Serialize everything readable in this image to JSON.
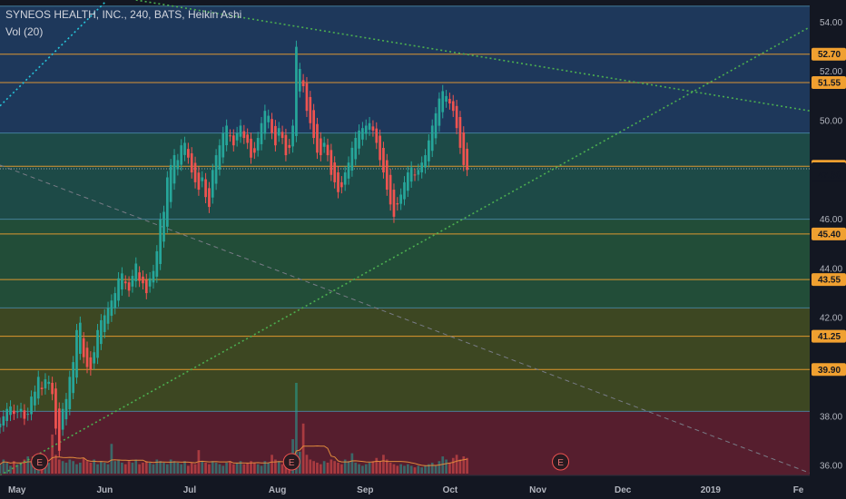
{
  "header": {
    "title": "SYNEOS HEALTH, INC., 240, BATS, Heikin Ashi",
    "indicator": "Vol (20)"
  },
  "chart_data": {
    "type": "candlestick",
    "title": "SYNEOS HEALTH, INC., 240, BATS, Heikin Ashi",
    "ylim": [
      35.6,
      54.9
    ],
    "y_ticks": [
      "36.00",
      "38.00",
      "42.00",
      "44.00",
      "46.00",
      "50.00",
      "52.00",
      "54.00"
    ],
    "x_ticks": [
      "May",
      "Jun",
      "Jul",
      "Aug",
      "Sep",
      "Oct",
      "Nov",
      "Dec",
      "2019",
      "Fe"
    ],
    "levels": [
      {
        "label": "52.70",
        "value": 52.7,
        "color": "#f0a030"
      },
      {
        "label": "51.55",
        "value": 51.55,
        "color": "#f0a030"
      },
      {
        "label": "48.15",
        "value": 48.15,
        "color": "#f0a030"
      },
      {
        "label": "45.40",
        "value": 45.4,
        "color": "#f0a030"
      },
      {
        "label": "43.55",
        "value": 43.55,
        "color": "#f0a030"
      },
      {
        "label": "41.25",
        "value": 41.25,
        "color": "#f0a030"
      },
      {
        "label": "39.90",
        "value": 39.9,
        "color": "#f0a030"
      }
    ],
    "current_price": {
      "label": "48.05",
      "value": 48.05,
      "color": "#ef5350"
    },
    "price_tag_2": {
      "label": "47.80",
      "value": 47.8,
      "color": "#ef5350"
    },
    "gridlines": [
      54.65,
      49.5,
      46.0,
      42.4,
      38.2
    ],
    "zones": [
      {
        "from": 49.5,
        "to": 54.65,
        "color": "#1f3a5f"
      },
      {
        "from": 46.0,
        "to": 49.5,
        "color": "#1e4d4a"
      },
      {
        "from": 42.4,
        "to": 46.0,
        "color": "#23503a"
      },
      {
        "from": 38.2,
        "to": 42.4,
        "color": "#3f4a23"
      },
      {
        "from": 35.6,
        "to": 38.2,
        "color": "#5a1f2f"
      }
    ],
    "trendlines": [
      {
        "points": [
          [
            "2018-04-25",
            35.6
          ],
          [
            "2019-02-05",
            53.8
          ]
        ],
        "color": "#4caf50",
        "style": "dotted"
      },
      {
        "points": [
          [
            "2018-06-12",
            54.9
          ],
          [
            "2019-02-05",
            50.4
          ]
        ],
        "color": "#4caf50",
        "style": "dotted"
      },
      {
        "points": [
          [
            "2018-04-25",
            50.6
          ],
          [
            "2018-06-01",
            54.8
          ]
        ],
        "color": "#26c6da",
        "style": "dotted"
      },
      {
        "points": [
          [
            "2018-04-25",
            48.2
          ],
          [
            "2019-02-05",
            35.7
          ]
        ],
        "color": "#787b86",
        "style": "dashed"
      }
    ],
    "price_series": {
      "x_start": "2018-04-25",
      "x_end": "2018-10-07",
      "close": [
        37.7,
        38.0,
        38.3,
        38.4,
        38.1,
        38.2,
        38.3,
        37.9,
        38.1,
        38.8,
        39.0,
        39.6,
        39.1,
        39.5,
        39.4,
        38.9,
        37.5,
        36.6,
        38.3,
        38.7,
        39.6,
        40.2,
        41.5,
        41.8,
        40.4,
        40.0,
        39.9,
        40.6,
        41.5,
        41.9,
        42.1,
        42.4,
        42.7,
        43.0,
        43.6,
        43.8,
        43.4,
        43.1,
        43.7,
        44.2,
        43.5,
        43.4,
        43.0,
        43.6,
        43.9,
        44.7,
        46.0,
        46.3,
        47.7,
        48.2,
        48.6,
        48.4,
        49.0,
        49.1,
        48.5,
        47.9,
        47.5,
        47.2,
        47.7,
        46.9,
        46.5,
        48.0,
        48.6,
        49.0,
        49.5,
        49.8,
        49.4,
        49.0,
        49.5,
        49.8,
        49.3,
        49.1,
        48.5,
        48.7,
        49.3,
        49.9,
        50.4,
        50.2,
        49.5,
        49.0,
        49.7,
        49.3,
        48.6,
        48.9,
        49.8,
        53.0,
        52.1,
        51.4,
        50.4,
        49.9,
        49.3,
        48.7,
        48.6,
        49.1,
        48.6,
        47.8,
        47.5,
        47.1,
        47.3,
        47.9,
        48.3,
        48.9,
        49.3,
        49.6,
        49.7,
        49.8,
        49.9,
        49.6,
        49.1,
        48.4,
        47.9,
        47.2,
        46.6,
        46.1,
        46.6,
        47.0,
        47.5,
        47.9,
        48.1,
        47.8,
        48.0,
        48.3,
        48.6,
        49.2,
        49.8,
        50.3,
        50.9,
        51.2,
        51.0,
        50.7,
        50.4,
        49.7,
        48.9,
        48.2,
        48.0
      ],
      "volume": [
        0.6,
        0.9,
        0.7,
        0.5,
        0.8,
        0.6,
        0.7,
        0.9,
        1.1,
        0.8,
        0.7,
        0.9,
        1.0,
        0.8,
        0.7,
        2.5,
        1.2,
        0.9,
        0.8,
        0.7,
        0.9,
        0.8,
        0.6,
        0.7,
        1.0,
        0.8,
        0.7,
        0.9,
        0.6,
        0.8,
        0.7,
        0.6,
        1.9,
        0.8,
        0.9,
        0.7,
        0.6,
        0.8,
        0.7,
        0.9,
        0.6,
        0.7,
        0.8,
        0.7,
        0.6,
        0.9,
        0.8,
        0.7,
        0.6,
        0.9,
        0.8,
        0.7,
        0.6,
        0.8,
        0.5,
        0.7,
        0.6,
        1.5,
        0.8,
        0.7,
        0.6,
        0.8,
        0.7,
        0.6,
        0.5,
        0.7,
        0.8,
        0.6,
        0.7,
        0.8,
        0.6,
        0.7,
        0.8,
        0.7,
        0.6,
        0.5,
        0.8,
        0.7,
        1.2,
        0.9,
        0.8,
        0.6,
        0.7,
        0.8,
        2.2,
        5.8,
        1.4,
        3.2,
        1.2,
        0.9,
        0.8,
        0.7,
        0.6,
        0.8,
        0.7,
        0.9,
        0.8,
        0.7,
        0.6,
        0.9,
        0.8,
        1.3,
        0.7,
        0.6,
        0.5,
        0.6,
        0.7,
        0.8,
        1.0,
        0.8,
        1.2,
        0.9,
        0.7,
        0.6,
        0.5,
        0.6,
        0.5,
        0.6,
        0.5,
        0.4,
        0.5,
        0.4,
        0.5,
        0.6,
        0.7,
        0.5,
        0.8,
        1.1,
        0.9,
        0.7,
        1.0,
        1.2,
        0.9,
        1.1,
        1.0
      ],
      "up_color": "#26a69a",
      "down_color": "#ef5350"
    },
    "volume_ma_color": "#e08a3c",
    "earnings_markers": [
      {
        "label": "E",
        "date": "2018-05-09"
      },
      {
        "label": "E",
        "date": "2018-08-06"
      },
      {
        "label": "E",
        "date": "2018-11-09"
      }
    ]
  }
}
